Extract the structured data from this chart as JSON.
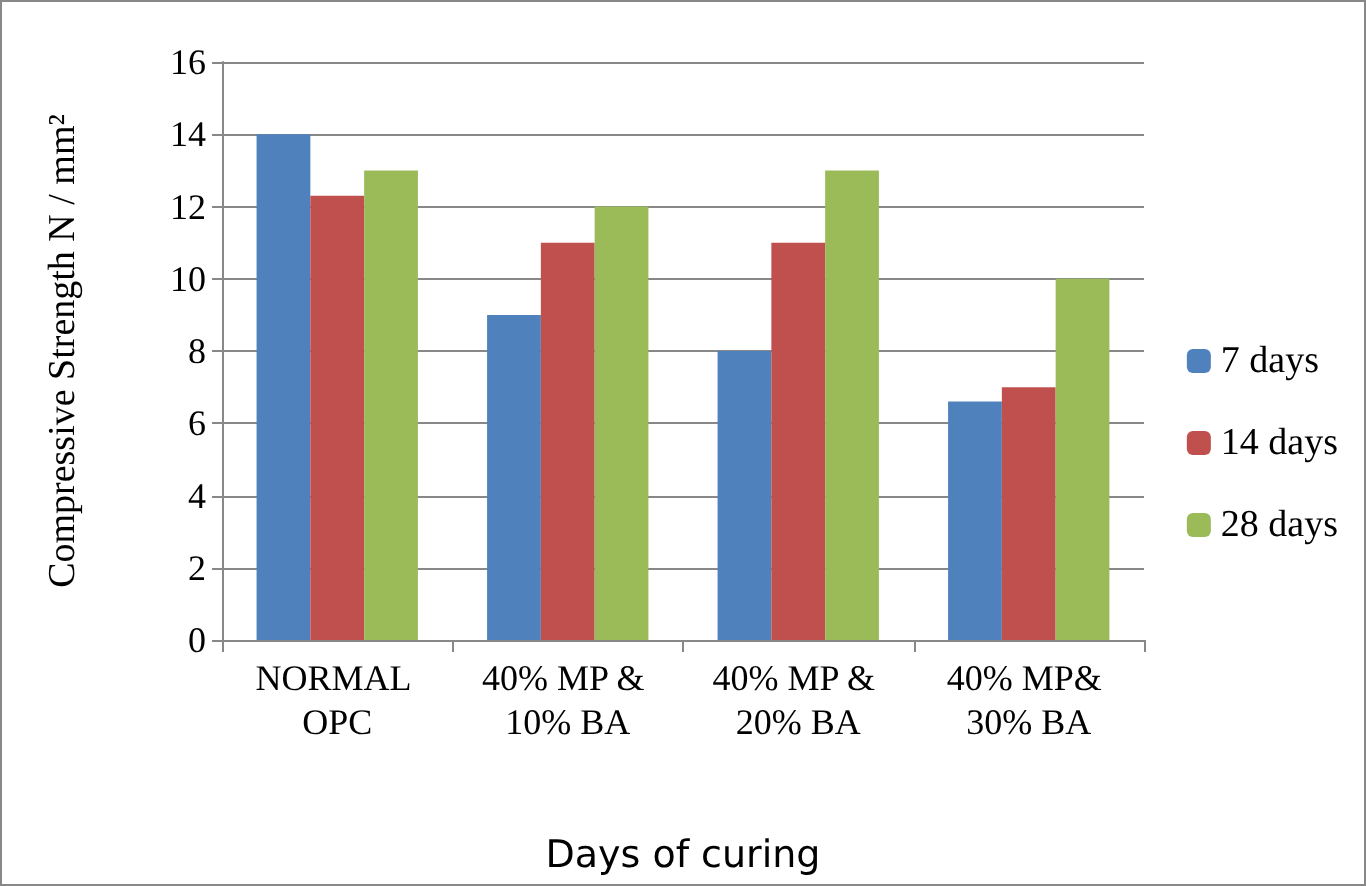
{
  "chart_data": {
    "type": "bar",
    "xlabel": "Days of curing",
    "ylabel": "Compressive Strength N / mm²",
    "categories": [
      "NORMAL OPC",
      "40% MP & 10% BA",
      "40% MP & 20% BA",
      "40% MP& 30% BA"
    ],
    "series": [
      {
        "name": "7 days",
        "color": "#4f81bd",
        "values": [
          14,
          9,
          8,
          6.6
        ]
      },
      {
        "name": "14 days",
        "color": "#c0504d",
        "values": [
          12.3,
          11,
          11,
          7
        ]
      },
      {
        "name": "28 days",
        "color": "#9bbb59",
        "values": [
          13,
          12,
          13,
          10
        ]
      }
    ],
    "ylim": [
      0,
      16
    ],
    "yticks": [
      0,
      2,
      4,
      6,
      8,
      10,
      12,
      14,
      16
    ],
    "grid": "y",
    "legend": "right"
  }
}
